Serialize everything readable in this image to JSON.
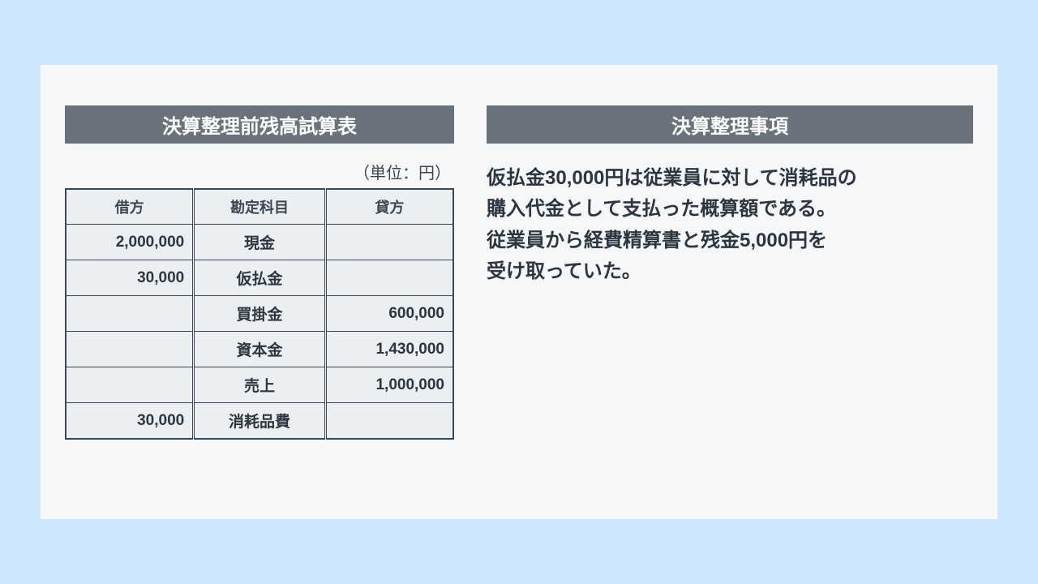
{
  "colors": {
    "page_bg": "#cce7ff",
    "card_bg": "#f5f7f9",
    "header_bg": "#6a727b",
    "header_text": "#ffffff",
    "table_border": "#3a4754",
    "cell_bg": "#eceff1",
    "text_dark": "#2c3640"
  },
  "left": {
    "title": "決算整理前残高試算表",
    "unit_label": "（単位：円）",
    "table": {
      "type": "table",
      "columns": [
        "借方",
        "勘定科目",
        "貸方"
      ],
      "rows": [
        {
          "debit": "2,000,000",
          "account": "現金",
          "credit": ""
        },
        {
          "debit": "30,000",
          "account": "仮払金",
          "credit": ""
        },
        {
          "debit": "",
          "account": "買掛金",
          "credit": "600,000"
        },
        {
          "debit": "",
          "account": "資本金",
          "credit": "1,430,000"
        },
        {
          "debit": "",
          "account": "売上",
          "credit": "1,000,000"
        },
        {
          "debit": "30,000",
          "account": "消耗品費",
          "credit": ""
        }
      ]
    }
  },
  "right": {
    "title": "決算整理事項",
    "description_lines": [
      "仮払金30,000円は従業員に対して消耗品の",
      "購入代金として支払った概算額である。",
      "従業員から経費精算書と残金5,000円を",
      "受け取っていた。"
    ]
  }
}
